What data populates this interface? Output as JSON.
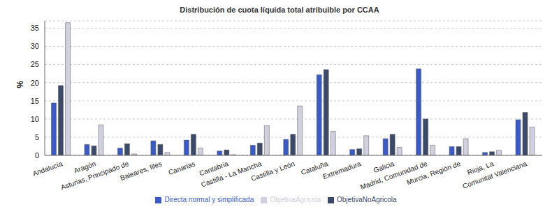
{
  "chart_data": {
    "type": "bar",
    "title": "Distribución de cuota líquida total atribuible por CCAA",
    "y_label": "%",
    "categories": [
      "Andalucía",
      "Aragón",
      "Asturias, Principado de",
      "Baleares, Illes",
      "Canarias",
      "Cantabria",
      "Castilla - La Mancha",
      "Castilla y León",
      "Cataluña",
      "Extremadura",
      "Galicia",
      "Madrid, Comunidad de",
      "Murcia, Región de",
      "Rioja, La",
      "Comunitat Valenciana"
    ],
    "series": [
      {
        "name": "Directa normal y simplificada",
        "color": "#3a5bc7",
        "values": [
          14.4,
          3.0,
          2.0,
          4.0,
          4.2,
          1.2,
          2.8,
          4.4,
          22.2,
          1.6,
          4.6,
          23.8,
          2.4,
          0.8,
          9.8
        ]
      },
      {
        "name": "ObjetivaNoAgricola",
        "color": "#3b4a6b",
        "values": [
          19.2,
          2.6,
          3.2,
          3.0,
          5.8,
          1.5,
          3.4,
          5.8,
          23.6,
          1.8,
          5.8,
          10.0,
          2.4,
          1.0,
          11.8
        ]
      },
      {
        "name": "ObjetivaAgricola",
        "color": "#d0d0e0",
        "values": [
          36.5,
          8.4,
          0.4,
          0.8,
          2.0,
          0.2,
          8.2,
          13.6,
          6.6,
          5.4,
          2.2,
          2.8,
          4.6,
          1.4,
          7.8
        ]
      }
    ],
    "ylim": [
      0,
      37
    ],
    "yticks": [
      0,
      5,
      10,
      15,
      20,
      25,
      30,
      35
    ],
    "grid": true,
    "legend": "bottom"
  }
}
